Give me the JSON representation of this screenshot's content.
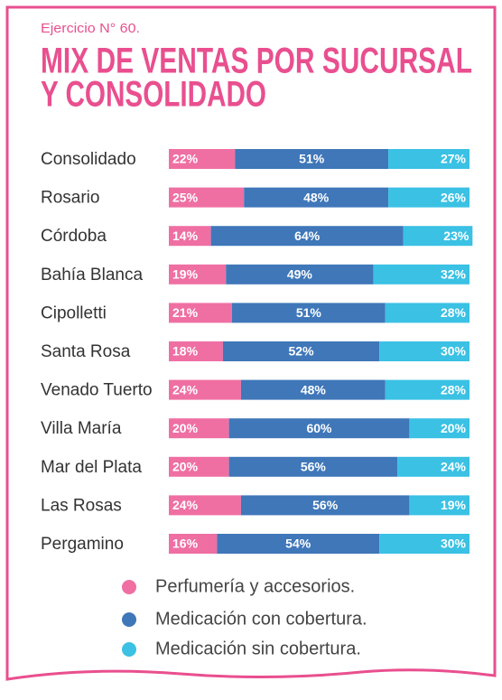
{
  "chart_data": {
    "type": "bar",
    "orientation": "horizontal",
    "stacked": true,
    "subtitle": "Ejercicio N° 60.",
    "title": [
      "MIX DE VENTAS POR SUCURSAL",
      "Y CONSOLIDADO"
    ],
    "xlim": [
      0,
      100
    ],
    "categories": [
      "Consolidado",
      "Rosario",
      "Córdoba",
      "Bahía Blanca",
      "Cipolletti",
      "Santa Rosa",
      "Venado Tuerto",
      "Villa María",
      "Mar del Plata",
      "Las Rosas",
      "Pergamino"
    ],
    "series": [
      {
        "name": "Perfumería y accesorios.",
        "color": "#ef6fa3",
        "values": [
          22,
          25,
          14,
          19,
          21,
          18,
          24,
          20,
          20,
          24,
          16
        ],
        "value_labels": [
          "22%",
          "25%",
          "14%",
          "19%",
          "21%",
          "18%",
          "24%",
          "20%",
          "20%",
          "24%",
          "16%"
        ]
      },
      {
        "name": "Medicación con cobertura.",
        "color": "#3f77b9",
        "values": [
          51,
          48,
          64,
          49,
          51,
          52,
          48,
          60,
          56,
          56,
          54
        ],
        "value_labels": [
          "51%",
          "48%",
          "64%",
          "49%",
          "51%",
          "52%",
          "48%",
          "60%",
          "56%",
          "56%",
          "54%"
        ]
      },
      {
        "name": "Medicación sin cobertura.",
        "color": "#3ac1e4",
        "values": [
          27,
          26,
          23,
          32,
          28,
          30,
          28,
          20,
          24,
          19,
          30
        ],
        "value_labels": [
          "27%",
          "26%",
          "23%",
          "32%",
          "28%",
          "30%",
          "28%",
          "20%",
          "24%",
          "19%",
          "30%"
        ]
      }
    ]
  }
}
